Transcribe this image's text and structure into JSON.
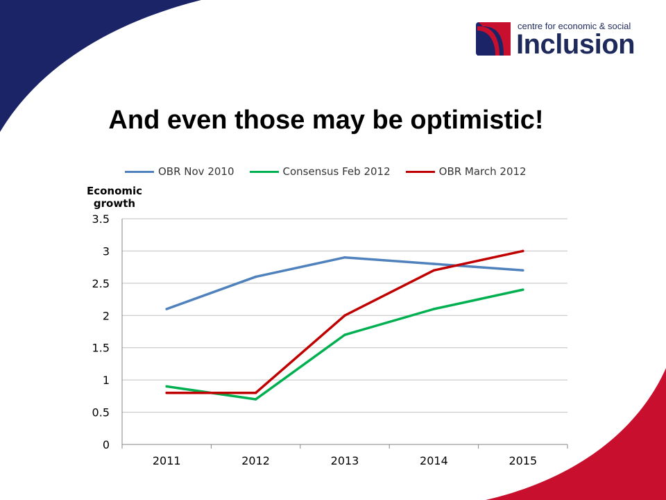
{
  "branding": {
    "small_text": "centre for economic & social",
    "big_text": "Inclusion",
    "navy": "#1a2466",
    "crimson": "#c8102e"
  },
  "slide": {
    "title": "And even those may be optimistic!"
  },
  "chart_data": {
    "type": "line",
    "title": "",
    "xlabel": "",
    "ylabel": "Economic growth",
    "categories": [
      "2011",
      "2012",
      "2013",
      "2014",
      "2015"
    ],
    "ylim": [
      0,
      3.5
    ],
    "yticks": [
      "0",
      "0.5",
      "1",
      "1.5",
      "2",
      "2.5",
      "3",
      "3.5"
    ],
    "ytick_values": [
      0,
      0.5,
      1,
      1.5,
      2,
      2.5,
      3,
      3.5
    ],
    "grid": true,
    "legend_position": "top",
    "series": [
      {
        "name": "OBR Nov 2010",
        "color": "#4f81bd",
        "values": [
          2.1,
          2.6,
          2.9,
          2.8,
          2.7
        ]
      },
      {
        "name": "Consensus Feb 2012",
        "color": "#00b050",
        "values": [
          0.9,
          0.7,
          1.7,
          2.1,
          2.4
        ]
      },
      {
        "name": "OBR March 2012",
        "color": "#c00000",
        "values": [
          0.8,
          0.8,
          2.0,
          2.7,
          3.0
        ]
      }
    ]
  }
}
